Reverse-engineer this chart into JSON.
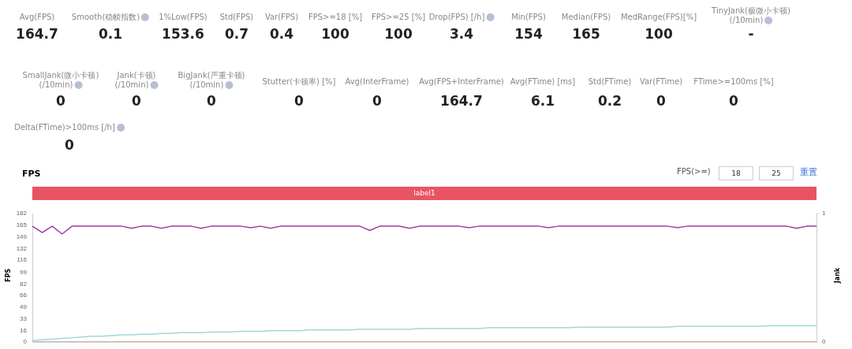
{
  "chart_data": [
    {
      "type": "other",
      "annotations": [
        "Avg(FPS)",
        "164.7",
        "Smooth(稳帧指数)",
        "0.1",
        "1%Low(FPS)",
        "153.6",
        "Std(FPS)",
        "0.7",
        "Var(FPS)",
        "0.4",
        "FPS>=18 [%]",
        "100",
        "FPS>=25 [%]",
        "100",
        "Drop(FPS) [/h]",
        "3.4",
        "Min(FPS)",
        "154",
        "Median(FPS)",
        "165",
        "MedRange(FPS)[%]",
        "100",
        "TinyJank(极微小卡顿)\n(/10min)",
        "-",
        "SmallJank(微小卡顿)\n(/10min)",
        "0",
        "Jank(卡顿)\n(/10min)",
        "0",
        "BigJank(严重卡顿)\n(/10min)",
        "0",
        "Stutter(卡顿率) [%]",
        "0",
        "Avg(InterFrame)",
        "0",
        "Avg(FPS+InterFrame)",
        "164.7",
        "Avg(FTime) [ms]",
        "6.1",
        "Std(FTime)",
        "0.2",
        "Var(FTime)",
        "0",
        "FTime>=100ms [%]",
        "0",
        "Delta(FTime)>100ms [/h]",
        "0"
      ]
    },
    {
      "type": "line",
      "title": "FPS",
      "ylabel": "FPS",
      "y2label": "Jank",
      "annotations": [
        "label1",
        "FPS(>=)",
        "18",
        "25",
        "重置"
      ],
      "categories": [
        null,
        null,
        null,
        null,
        null,
        null,
        null,
        null,
        null,
        null,
        null,
        null,
        null,
        null,
        null,
        null,
        null,
        null,
        null,
        null,
        null,
        null,
        null,
        null,
        null,
        null,
        null,
        null,
        null,
        null,
        null,
        null,
        null,
        null,
        null,
        null,
        null,
        null,
        null,
        null,
        null,
        null,
        null,
        null,
        null,
        null,
        null,
        null,
        null,
        null,
        null,
        null,
        null,
        null,
        null,
        null,
        null,
        null,
        null,
        null,
        null,
        null,
        null,
        null,
        null,
        null,
        null,
        null,
        null,
        null,
        null,
        null,
        null,
        null,
        null,
        null,
        null,
        null,
        null,
        null
      ],
      "series": [
        {
          "color": "#a8389e",
          "values": [
            164,
            155,
            164,
            153,
            164,
            164,
            164,
            164,
            164,
            164,
            161,
            164,
            164,
            161,
            164,
            164,
            164,
            161,
            164,
            164,
            164,
            164,
            162,
            164,
            161,
            164,
            164,
            164,
            164,
            164,
            164,
            164,
            164,
            164,
            158,
            164,
            164,
            164,
            161,
            164,
            164,
            164,
            164,
            164,
            162,
            164,
            164,
            164,
            164,
            164,
            164,
            164,
            162,
            164,
            164,
            164,
            164,
            164,
            164,
            164,
            164,
            164,
            164,
            164,
            164,
            162,
            164,
            164,
            164,
            164,
            164,
            164,
            164,
            164,
            164,
            164,
            164,
            161,
            164,
            164
          ]
        },
        {
          "color": "#9fd8d8",
          "values": [
            2,
            3,
            4,
            5,
            6,
            7,
            8,
            8,
            9,
            10,
            10,
            11,
            11,
            12,
            12,
            13,
            13,
            13,
            14,
            14,
            14,
            15,
            15,
            15,
            16,
            16,
            16,
            16,
            17,
            17,
            17,
            17,
            17,
            18,
            18,
            18,
            18,
            18,
            18,
            19,
            19,
            19,
            19,
            19,
            19,
            19,
            20,
            20,
            20,
            20,
            20,
            20,
            20,
            20,
            20,
            21,
            21,
            21,
            21,
            21,
            21,
            21,
            21,
            21,
            21,
            22,
            22,
            22,
            22,
            22,
            22,
            22,
            22,
            22,
            23,
            23,
            23,
            23,
            23,
            23
          ]
        },
        {
          "color": "#c9a08c",
          "values": [
            0,
            0,
            0,
            0,
            0,
            0,
            0,
            0,
            0,
            0,
            0,
            0,
            0,
            0,
            0,
            0,
            0,
            0,
            0,
            0,
            0,
            0,
            0,
            0,
            0,
            0,
            0,
            0,
            0,
            0,
            0,
            0,
            0,
            0,
            0,
            0,
            0,
            0,
            0,
            0,
            0,
            0,
            0,
            0,
            0,
            0,
            0,
            0,
            0,
            0,
            0,
            0,
            0,
            0,
            0,
            0,
            0,
            0,
            0,
            0,
            0,
            0,
            0,
            0,
            0,
            0,
            0,
            0,
            0,
            0,
            0,
            0,
            0,
            0,
            0,
            0,
            0,
            0,
            0,
            0
          ]
        }
      ],
      "ylim": [
        0,
        182
      ],
      "yticks": [
        0,
        16,
        33,
        49,
        66,
        82,
        99,
        116,
        132,
        149,
        165,
        182
      ],
      "y2lim": [
        0,
        1
      ],
      "y2ticks": [
        0,
        1
      ],
      "grid": false,
      "legend": false,
      "marker": "none",
      "line_style": "solid"
    }
  ]
}
